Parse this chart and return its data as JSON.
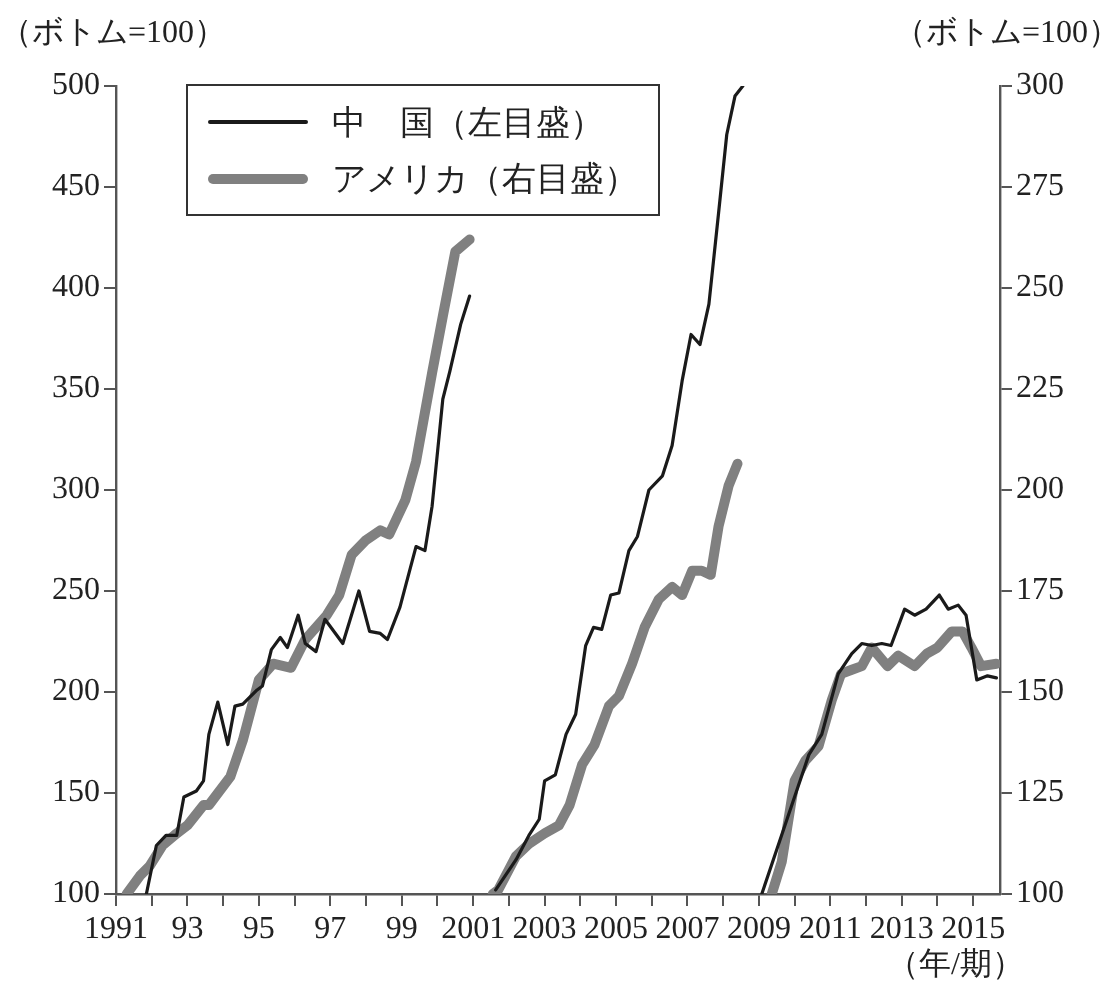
{
  "chart_data": {
    "type": "line",
    "ylabel": "（ボトム=100）",
    "y2label": "（ボトム=100）",
    "xlabel": "（年/期）",
    "legend": "top left",
    "grid": false,
    "marker": "none",
    "line_style": "solid",
    "xlim": [
      1991,
      2015.75
    ],
    "xticks": [
      1991,
      {
        "value": 1992,
        "label": null
      },
      {
        "value": 1993,
        "label": "93"
      },
      {
        "value": 1994,
        "label": null
      },
      {
        "value": 1995,
        "label": "95"
      },
      {
        "value": 1996,
        "label": null
      },
      {
        "value": 1997,
        "label": "97"
      },
      {
        "value": 1998,
        "label": null
      },
      {
        "value": 1999,
        "label": "99"
      },
      {
        "value": 2000,
        "label": null
      },
      2001,
      {
        "value": 2002,
        "label": null
      },
      2003,
      {
        "value": 2004,
        "label": null
      },
      2005,
      {
        "value": 2006,
        "label": null
      },
      2007,
      {
        "value": 2008,
        "label": null
      },
      2009,
      {
        "value": 2010,
        "label": null
      },
      2011,
      {
        "value": 2012,
        "label": null
      },
      2013,
      {
        "value": 2014,
        "label": null
      },
      2015
    ],
    "ylim": [
      100,
      500
    ],
    "yticks": [
      100,
      150,
      200,
      250,
      300,
      350,
      400,
      450,
      500
    ],
    "y2lim": [
      100,
      300
    ],
    "y2ticks": [
      100,
      125,
      150,
      175,
      200,
      225,
      250,
      275,
      300
    ],
    "series": [
      {
        "name": "中　国（左目盛）",
        "color": "#1a1a1a",
        "axis": "y",
        "x": [
          1991.85,
          1992.13,
          1992.4,
          1992.7,
          1992.9,
          1993.25,
          1993.45,
          1993.6,
          1993.85,
          1994.13,
          1994.33,
          1994.55,
          1994.95,
          1995.1,
          1995.35,
          1995.6,
          1995.8,
          1996.1,
          1996.3,
          1996.6,
          1996.85,
          1997.35,
          1997.8,
          1998.1,
          1998.4,
          1998.6,
          1998.95,
          1999.1,
          1999.4,
          1999.65,
          1999.85,
          2000.15,
          2000.35,
          2000.65,
          2000.9,
          2001.3,
          2001.63,
          2002.2,
          2002.56,
          2002.85,
          2003.0,
          2003.3,
          2003.6,
          2003.87,
          2004.15,
          2004.37,
          2004.6,
          2004.85,
          2005.08,
          2005.36,
          2005.6,
          2005.92,
          2006.3,
          2006.57,
          2006.85,
          2007.1,
          2007.35,
          2007.6,
          2007.87,
          2008.1,
          2008.33,
          2008.55,
          2008.8,
          2009.08,
          2009.73,
          2010.4,
          2010.76,
          2011.22,
          2011.6,
          2011.88,
          2012.16,
          2012.44,
          2012.7,
          2013.08,
          2013.36,
          2013.68,
          2014.05,
          2014.3,
          2014.58,
          2014.8,
          2015.1,
          2015.4,
          2015.65
        ],
        "values": [
          100,
          124,
          129,
          129,
          148,
          151,
          156,
          179,
          195,
          174,
          193,
          194,
          201,
          203,
          221,
          227,
          222,
          238,
          224,
          220,
          236,
          224,
          250,
          230,
          229,
          226,
          242,
          252,
          272,
          270,
          292,
          345,
          359,
          382,
          396,
          null,
          102,
          117,
          129,
          137,
          156,
          159,
          179,
          189,
          223,
          232,
          231,
          248,
          249,
          270,
          277,
          300,
          307,
          322,
          354,
          377,
          372,
          392,
          437,
          476,
          495,
          500,
          null,
          100,
          134,
          169,
          179,
          209,
          219,
          224,
          223,
          224,
          223,
          241,
          238,
          241,
          248,
          241,
          243,
          238,
          206,
          208,
          207
        ]
      },
      {
        "name": "アメリカ（右目盛）",
        "color": "#808080",
        "axis": "y2",
        "x": [
          1991.3,
          1991.67,
          1991.95,
          1992.3,
          1992.7,
          1993.0,
          1993.45,
          1993.6,
          1994.2,
          1994.55,
          1995.0,
          1995.4,
          1995.9,
          1996.3,
          1996.9,
          1997.25,
          1997.6,
          1998.0,
          1998.4,
          1998.65,
          1999.1,
          1999.4,
          1999.85,
          2000.15,
          2000.5,
          2000.9,
          2001.2,
          2001.55,
          2001.7,
          2002.2,
          2002.56,
          2003.0,
          2003.4,
          2003.7,
          2004.05,
          2004.4,
          2004.8,
          2005.08,
          2005.45,
          2005.8,
          2006.2,
          2006.57,
          2006.85,
          2007.13,
          2007.4,
          2007.65,
          2007.87,
          2008.15,
          2008.4,
          2008.9,
          2009.36,
          2009.64,
          2010.0,
          2010.3,
          2010.67,
          2011.04,
          2011.3,
          2011.6,
          2011.88,
          2012.16,
          2012.6,
          2012.9,
          2013.36,
          2013.7,
          2014.0,
          2014.4,
          2014.7,
          2014.95,
          2015.22,
          2015.65
        ],
        "values": [
          100,
          104.5,
          107,
          112,
          115,
          117,
          122,
          122,
          129,
          138,
          153,
          157,
          156,
          163,
          169,
          174,
          184,
          187.6,
          190,
          189,
          197.5,
          207,
          229,
          243,
          259,
          262,
          null,
          100,
          101,
          109.4,
          112.4,
          115,
          117,
          122,
          132,
          137,
          146.5,
          149,
          157,
          166,
          173,
          176,
          174,
          180,
          180,
          179,
          191,
          201,
          206.5,
          null,
          100,
          108,
          128,
          133,
          136.6,
          148,
          154.5,
          155.5,
          156.4,
          161,
          156.4,
          159,
          156.4,
          159.5,
          161,
          165,
          165,
          161,
          156.4,
          157
        ]
      }
    ]
  }
}
